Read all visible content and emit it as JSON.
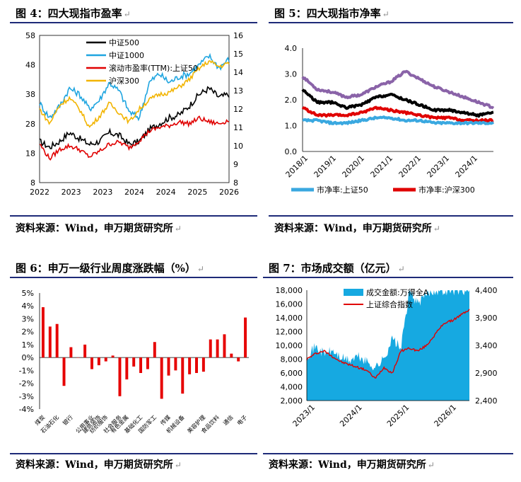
{
  "fig4": {
    "title": "图 4：四大现指市盈率",
    "chart_data": {
      "type": "line",
      "x_ticks": [
        "2022",
        "2023",
        "2023",
        "2024",
        "2024",
        "2025",
        "2026"
      ],
      "y_left": {
        "ticks": [
          "58",
          "48",
          "38",
          "28",
          "18",
          "8"
        ],
        "range": [
          8,
          58
        ]
      },
      "y_right": {
        "ticks": [
          "16",
          "15",
          "14",
          "13",
          "12",
          "11",
          "10",
          "9",
          "8"
        ],
        "range": [
          8,
          16
        ]
      },
      "legend": [
        "中证500",
        "中证1000",
        "滚动市盈率(TTM):上证50",
        "沪深300"
      ],
      "series": [
        {
          "name": "中证500",
          "color": "#000000",
          "axis": "left",
          "values": [
            22,
            20,
            22,
            25,
            23,
            21,
            22,
            25,
            24,
            21,
            22,
            26,
            28,
            30,
            31,
            34,
            38,
            40,
            37,
            38
          ]
        },
        {
          "name": "中证1000",
          "color": "#1fa5e0",
          "axis": "left",
          "values": [
            35,
            30,
            34,
            40,
            38,
            33,
            36,
            42,
            39,
            32,
            30,
            42,
            45,
            42,
            44,
            45,
            48,
            51,
            47,
            50
          ]
        },
        {
          "name": "滚动市盈率(TTM):上证50",
          "color": "#e00000",
          "axis": "right",
          "values": [
            10.1,
            9.3,
            9.8,
            10.0,
            9.8,
            9.4,
            9.7,
            10.1,
            10.2,
            9.9,
            10.3,
            10.8,
            11.0,
            11.1,
            11.3,
            11.2,
            11.5,
            11.3,
            11.2,
            11.4
          ]
        },
        {
          "name": "沪深300",
          "color": "#f2b400",
          "axis": "right",
          "values": [
            12.0,
            11.2,
            12.2,
            12.6,
            12.0,
            11.0,
            11.6,
            12.3,
            11.8,
            11.3,
            12.0,
            12.5,
            12.8,
            12.9,
            13.2,
            13.6,
            14.2,
            14.6,
            14.3,
            14.5
          ]
        }
      ]
    },
    "source": "资料来源：Wind，申万期货研究所"
  },
  "fig5": {
    "title": "图 5：四大现指市净率",
    "chart_data": {
      "type": "line",
      "x_ticks": [
        "2018/1",
        "2019/1",
        "2020/1",
        "2021/1",
        "2022/1",
        "2023/1",
        "2024/1"
      ],
      "y_ticks": [
        "4.0",
        "3.0",
        "2.0",
        "1.0",
        "0.0"
      ],
      "ylim": [
        0,
        4
      ],
      "legend": [
        "市净率:上证50",
        "市净率:沪深300"
      ],
      "series": [
        {
          "name": "purple",
          "color": "#8a63a8",
          "values": [
            2.9,
            2.4,
            2.3,
            2.1,
            2.2,
            2.5,
            2.7,
            3.1,
            2.8,
            2.5,
            2.3,
            2.1,
            1.9,
            1.7
          ]
        },
        {
          "name": "black",
          "color": "#000000",
          "values": [
            2.4,
            1.9,
            1.9,
            1.7,
            1.8,
            2.1,
            2.2,
            2.0,
            1.8,
            1.6,
            1.6,
            1.5,
            1.4,
            1.5
          ]
        },
        {
          "name": "市净率:沪深300",
          "color": "#e00000",
          "values": [
            1.7,
            1.4,
            1.4,
            1.4,
            1.5,
            1.7,
            1.6,
            1.5,
            1.4,
            1.3,
            1.3,
            1.2,
            1.2,
            1.2
          ]
        },
        {
          "name": "市净率:上证50",
          "color": "#3aa8e0",
          "values": [
            1.2,
            1.2,
            1.1,
            1.1,
            1.2,
            1.3,
            1.3,
            1.2,
            1.2,
            1.1,
            1.1,
            1.1,
            1.1,
            1.1
          ]
        }
      ]
    },
    "source": "资料来源：Wind，申万期货研究所"
  },
  "fig6": {
    "title": "图 6：申万一级行业周度涨跌幅（%）",
    "chart_data": {
      "type": "bar",
      "ylim": [
        -4,
        5
      ],
      "y_ticks": [
        "5%",
        "4%",
        "3%",
        "2%",
        "1%",
        "0%",
        "-1%",
        "-2%",
        "-3%",
        "-4%"
      ],
      "categories": [
        "煤炭",
        "",
        "石油石化",
        "",
        "银行",
        "",
        "",
        "公用事业",
        "建筑装饰",
        "纺织服饰",
        "",
        "社会服务",
        "有色金属",
        "",
        "基础化工",
        "",
        "国防军工",
        "",
        "传媒",
        "",
        "机械设备",
        "",
        "",
        "美容护理",
        "",
        "食品饮料",
        "",
        "通信",
        "",
        "电子"
      ],
      "values": [
        3.9,
        2.4,
        2.6,
        -2.2,
        0.8,
        0.0,
        1.0,
        -0.9,
        -0.6,
        -0.3,
        0.15,
        -3.0,
        -1.7,
        -0.7,
        -1.2,
        -0.9,
        1.2,
        -3.2,
        -1.4,
        -1.0,
        -2.8,
        -1.3,
        -1.2,
        -1.1,
        1.4,
        1.4,
        1.8,
        0.3,
        -0.3,
        3.1
      ],
      "color": "#e60000"
    },
    "source": "资料来源：Wind，申万期货研究所"
  },
  "fig7": {
    "title": "图 7：市场成交额（亿元）",
    "chart_data": {
      "type": "area",
      "x_ticks": [
        "2023/1",
        "2024/1",
        "2025/1",
        "2026/1"
      ],
      "y_left": {
        "ticks": [
          "18,000",
          "16,000",
          "14,000",
          "12,000",
          "10,000",
          "8,000",
          "6,000",
          "4,000",
          "2,000"
        ],
        "range": [
          2000,
          18000
        ]
      },
      "y_right": {
        "ticks": [
          "4,400",
          "3,900",
          "3,400",
          "2,900",
          "2,400"
        ],
        "range": [
          2400,
          4400
        ]
      },
      "legend": [
        "成交金额:万得全A",
        "上证综合指数"
      ],
      "series": [
        {
          "name": "成交金额:万得全A",
          "color": "#16a9e1",
          "axis": "left",
          "values": [
            8500,
            9800,
            8800,
            9200,
            8200,
            7800,
            8400,
            7600,
            6800,
            8000,
            11000,
            9500,
            18000,
            16000,
            17500,
            18000,
            18000,
            18000,
            18000,
            18000
          ]
        },
        {
          "name": "上证综合指数",
          "color": "#e00000",
          "axis": "right",
          "values": [
            3150,
            3250,
            3300,
            3200,
            3100,
            3050,
            3000,
            2950,
            2800,
            3000,
            2900,
            3300,
            3350,
            3300,
            3400,
            3600,
            3800,
            3850,
            3950,
            4050
          ]
        }
      ]
    },
    "source": "资料来源：Wind，申万期货研究所"
  },
  "return_mark": "↵"
}
